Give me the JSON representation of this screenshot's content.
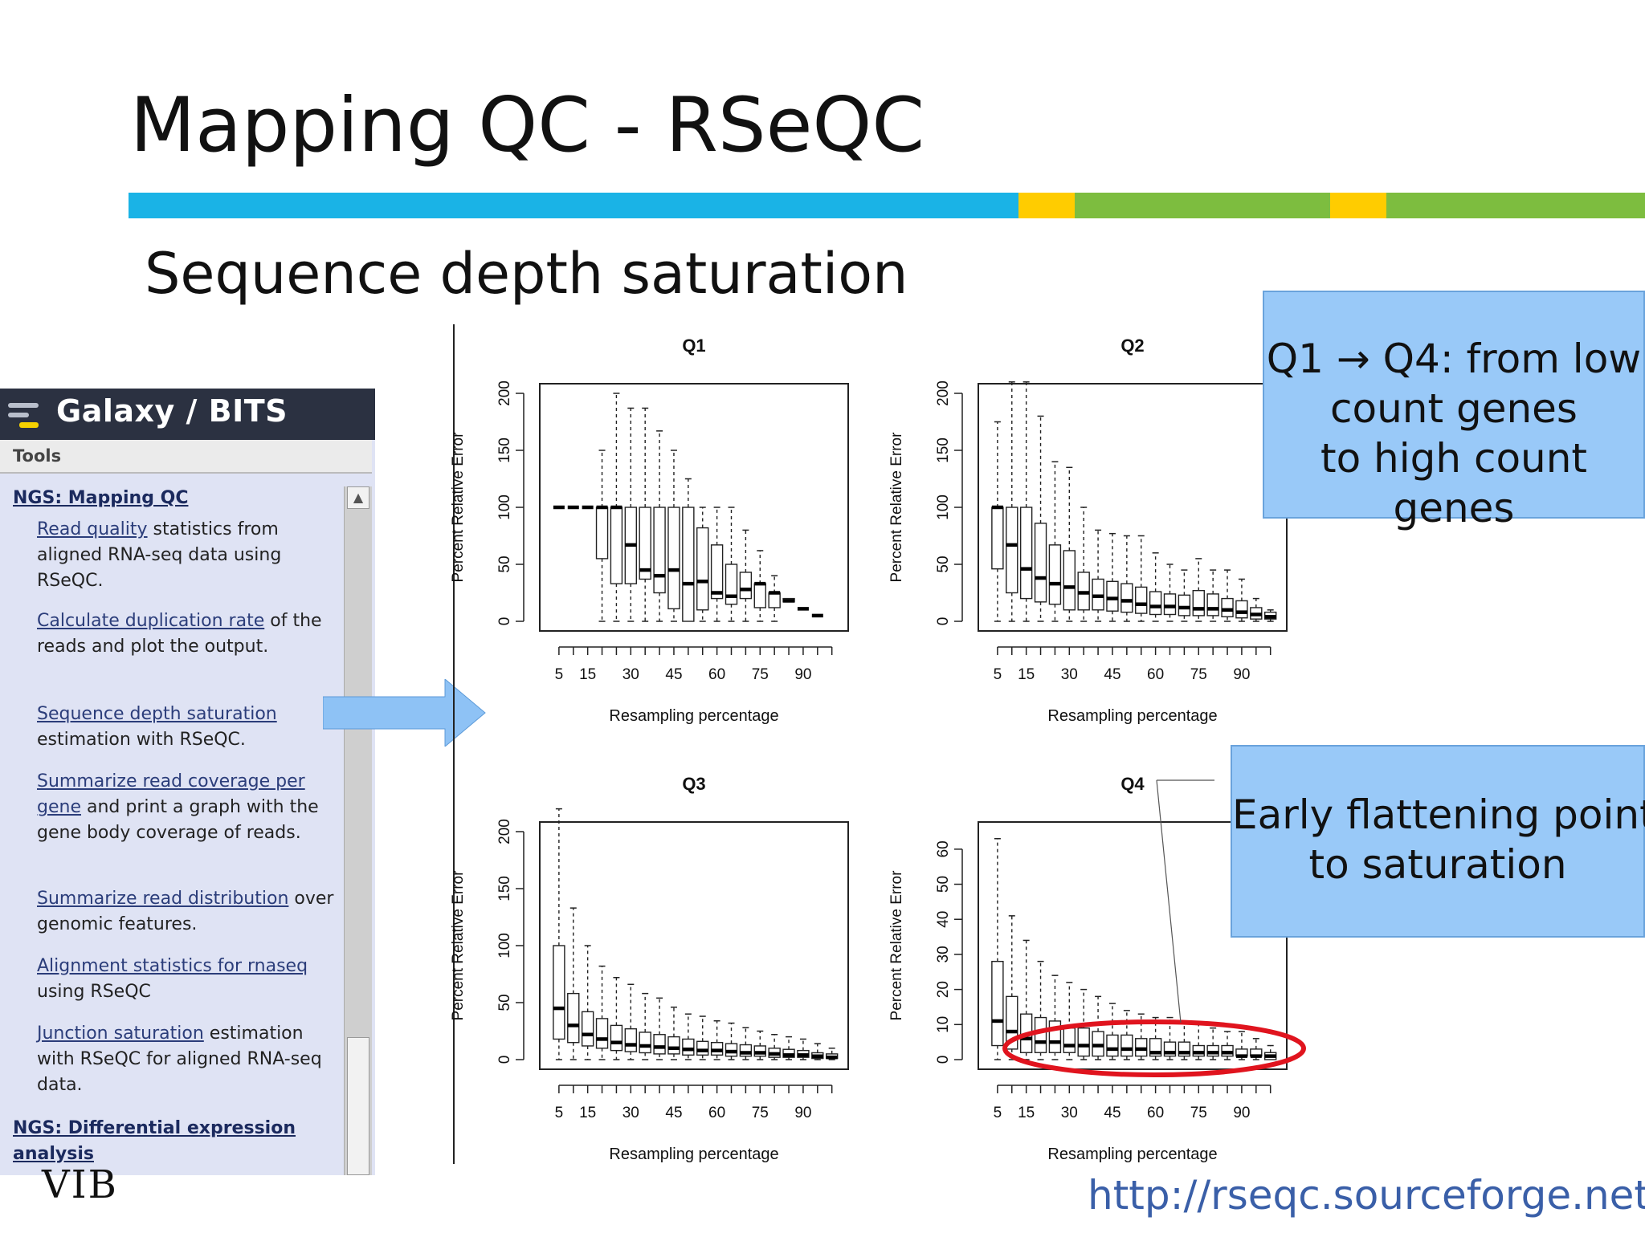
{
  "slide": {
    "title": "Mapping QC - RSeQC",
    "subtitle": "Sequence depth saturation",
    "url": "http://rseqc.sourceforge.net/",
    "logo_text": "VIB",
    "color_bar": [
      "#1ab3e6",
      "#ffcc00",
      "#7dbd3f",
      "#ffcc00",
      "#7dbd3f"
    ]
  },
  "galaxy": {
    "title": "Galaxy / BITS",
    "tools_label": "Tools",
    "section_mapping": "NGS: Mapping QC",
    "items": [
      {
        "link": "Read quality",
        "text": " statistics from aligned RNA-seq data using RSeQC."
      },
      {
        "link": "Calculate duplication rate",
        "text": " of the reads and plot the output."
      },
      {
        "link": "Sequence depth saturation",
        "text": " estimation with RSeQC."
      },
      {
        "link": "Summarize read coverage per gene",
        "text": " and print a graph with the gene body coverage of reads."
      },
      {
        "link": "Summarize read distribution",
        "text": " over genomic features."
      },
      {
        "link": "Alignment statistics for rnaseq",
        "text": " using RSeQC"
      },
      {
        "link": "Junction saturation",
        "text": " estimation with RSeQC for aligned RNA-seq data."
      }
    ],
    "section_diff": "NGS: Differential expression analysis",
    "colors": {
      "header": "#2b3141",
      "panel": "#dfe3f4"
    }
  },
  "callouts": {
    "c1": [
      "Q1 → Q4: from low",
      "count genes",
      "to high count genes"
    ],
    "c2": [
      "Early flattening points",
      "to saturation"
    ],
    "colors": {
      "fill": "#99c9f8",
      "highlight": "#e0141e",
      "arrow": "#8ec2f5"
    }
  },
  "chart_data": [
    {
      "type": "box",
      "title": "Q1",
      "xlabel": "Resampling percentage",
      "ylabel": "Percent Relative Error",
      "ylim": [
        0,
        200
      ],
      "xticks": [
        "5",
        "15",
        "30",
        "45",
        "60",
        "75",
        "90"
      ],
      "yticks": [
        "0",
        "50",
        "100",
        "150",
        "200"
      ],
      "boxes": [
        {
          "x": 5,
          "min": 100,
          "q1": 100,
          "med": 100,
          "q3": 100,
          "max": 100
        },
        {
          "x": 10,
          "min": 100,
          "q1": 100,
          "med": 100,
          "q3": 100,
          "max": 100
        },
        {
          "x": 15,
          "min": 100,
          "q1": 100,
          "med": 100,
          "q3": 100,
          "max": 100
        },
        {
          "x": 20,
          "min": 0,
          "q1": 55,
          "med": 100,
          "q3": 100,
          "max": 150
        },
        {
          "x": 25,
          "min": 0,
          "q1": 33,
          "med": 100,
          "q3": 100,
          "max": 200
        },
        {
          "x": 30,
          "min": 0,
          "q1": 33,
          "med": 67,
          "q3": 100,
          "max": 187
        },
        {
          "x": 35,
          "min": 0,
          "q1": 37,
          "med": 45,
          "q3": 100,
          "max": 187
        },
        {
          "x": 40,
          "min": 0,
          "q1": 25,
          "med": 40,
          "q3": 100,
          "max": 167
        },
        {
          "x": 45,
          "min": 0,
          "q1": 11,
          "med": 45,
          "q3": 100,
          "max": 150
        },
        {
          "x": 50,
          "min": 0,
          "q1": 0,
          "med": 33,
          "q3": 100,
          "max": 125
        },
        {
          "x": 55,
          "min": 0,
          "q1": 10,
          "med": 35,
          "q3": 82,
          "max": 100
        },
        {
          "x": 60,
          "min": 0,
          "q1": 20,
          "med": 25,
          "q3": 67,
          "max": 100
        },
        {
          "x": 65,
          "min": 0,
          "q1": 15,
          "med": 22,
          "q3": 50,
          "max": 100
        },
        {
          "x": 70,
          "min": 0,
          "q1": 20,
          "med": 28,
          "q3": 43,
          "max": 80
        },
        {
          "x": 75,
          "min": 0,
          "q1": 12,
          "med": 33,
          "q3": 33,
          "max": 62
        },
        {
          "x": 80,
          "min": 0,
          "q1": 12,
          "med": 25,
          "q3": 25,
          "max": 40
        },
        {
          "x": 85,
          "min": 17,
          "q1": 17,
          "med": 18,
          "q3": 20,
          "max": 20
        },
        {
          "x": 90,
          "min": 11,
          "q1": 11,
          "med": 11,
          "q3": 11,
          "max": 11
        },
        {
          "x": 95,
          "min": 5,
          "q1": 5,
          "med": 5,
          "q3": 5,
          "max": 5
        }
      ]
    },
    {
      "type": "box",
      "title": "Q2",
      "xlabel": "Resampling percentage",
      "ylabel": "Percent Relative Error",
      "ylim": [
        0,
        200
      ],
      "xticks": [
        "5",
        "15",
        "30",
        "45",
        "60",
        "75",
        "90"
      ],
      "yticks": [
        "0",
        "50",
        "100",
        "150",
        "200"
      ],
      "boxes": [
        {
          "x": 5,
          "min": 0,
          "q1": 46,
          "med": 100,
          "q3": 100,
          "max": 175
        },
        {
          "x": 10,
          "min": 0,
          "q1": 25,
          "med": 67,
          "q3": 100,
          "max": 210
        },
        {
          "x": 15,
          "min": 0,
          "q1": 20,
          "med": 46,
          "q3": 100,
          "max": 210
        },
        {
          "x": 20,
          "min": 0,
          "q1": 17,
          "med": 38,
          "q3": 86,
          "max": 180
        },
        {
          "x": 25,
          "min": 0,
          "q1": 15,
          "med": 33,
          "q3": 67,
          "max": 140
        },
        {
          "x": 30,
          "min": 0,
          "q1": 10,
          "med": 30,
          "q3": 62,
          "max": 135
        },
        {
          "x": 35,
          "min": 0,
          "q1": 10,
          "med": 25,
          "q3": 43,
          "max": 100
        },
        {
          "x": 40,
          "min": 0,
          "q1": 10,
          "med": 22,
          "q3": 37,
          "max": 80
        },
        {
          "x": 45,
          "min": 0,
          "q1": 9,
          "med": 20,
          "q3": 35,
          "max": 77
        },
        {
          "x": 50,
          "min": 0,
          "q1": 8,
          "med": 18,
          "q3": 33,
          "max": 75
        },
        {
          "x": 55,
          "min": 0,
          "q1": 7,
          "med": 15,
          "q3": 30,
          "max": 75
        },
        {
          "x": 60,
          "min": 0,
          "q1": 6,
          "med": 13,
          "q3": 26,
          "max": 60
        },
        {
          "x": 65,
          "min": 0,
          "q1": 6,
          "med": 13,
          "q3": 24,
          "max": 50
        },
        {
          "x": 70,
          "min": 0,
          "q1": 5,
          "med": 12,
          "q3": 23,
          "max": 45
        },
        {
          "x": 75,
          "min": 0,
          "q1": 5,
          "med": 11,
          "q3": 27,
          "max": 55
        },
        {
          "x": 80,
          "min": 0,
          "q1": 5,
          "med": 11,
          "q3": 24,
          "max": 45
        },
        {
          "x": 85,
          "min": 0,
          "q1": 4,
          "med": 10,
          "q3": 20,
          "max": 45
        },
        {
          "x": 90,
          "min": 0,
          "q1": 3,
          "med": 8,
          "q3": 18,
          "max": 37
        },
        {
          "x": 95,
          "min": 0,
          "q1": 2,
          "med": 6,
          "q3": 12,
          "max": 20
        },
        {
          "x": 100,
          "min": 0,
          "q1": 2,
          "med": 4,
          "q3": 8,
          "max": 10
        }
      ]
    },
    {
      "type": "box",
      "title": "Q3",
      "xlabel": "Resampling percentage",
      "ylabel": "Percent Relative Error",
      "ylim": [
        0,
        200
      ],
      "xticks": [
        "5",
        "15",
        "30",
        "45",
        "60",
        "75",
        "90"
      ],
      "yticks": [
        "0",
        "50",
        "100",
        "150",
        "200"
      ],
      "boxes": [
        {
          "x": 5,
          "min": 0,
          "q1": 18,
          "med": 45,
          "q3": 100,
          "max": 220
        },
        {
          "x": 10,
          "min": 0,
          "q1": 15,
          "med": 30,
          "q3": 58,
          "max": 133
        },
        {
          "x": 15,
          "min": 0,
          "q1": 12,
          "med": 22,
          "q3": 42,
          "max": 100
        },
        {
          "x": 20,
          "min": 0,
          "q1": 10,
          "med": 18,
          "q3": 36,
          "max": 82
        },
        {
          "x": 25,
          "min": 0,
          "q1": 8,
          "med": 15,
          "q3": 30,
          "max": 72
        },
        {
          "x": 30,
          "min": 0,
          "q1": 7,
          "med": 13,
          "q3": 27,
          "max": 66
        },
        {
          "x": 35,
          "min": 0,
          "q1": 6,
          "med": 12,
          "q3": 24,
          "max": 58
        },
        {
          "x": 40,
          "min": 0,
          "q1": 5,
          "med": 11,
          "q3": 22,
          "max": 54
        },
        {
          "x": 45,
          "min": 0,
          "q1": 5,
          "med": 10,
          "q3": 20,
          "max": 46
        },
        {
          "x": 50,
          "min": 0,
          "q1": 4,
          "med": 9,
          "q3": 18,
          "max": 40
        },
        {
          "x": 55,
          "min": 0,
          "q1": 4,
          "med": 8,
          "q3": 16,
          "max": 38
        },
        {
          "x": 60,
          "min": 0,
          "q1": 4,
          "med": 8,
          "q3": 15,
          "max": 34
        },
        {
          "x": 65,
          "min": 0,
          "q1": 3,
          "med": 7,
          "q3": 14,
          "max": 32
        },
        {
          "x": 70,
          "min": 0,
          "q1": 3,
          "med": 6,
          "q3": 13,
          "max": 28
        },
        {
          "x": 75,
          "min": 0,
          "q1": 3,
          "med": 6,
          "q3": 12,
          "max": 25
        },
        {
          "x": 80,
          "min": 0,
          "q1": 2,
          "med": 5,
          "q3": 10,
          "max": 22
        },
        {
          "x": 85,
          "min": 0,
          "q1": 2,
          "med": 4,
          "q3": 9,
          "max": 20
        },
        {
          "x": 90,
          "min": 0,
          "q1": 2,
          "med": 4,
          "q3": 8,
          "max": 18
        },
        {
          "x": 95,
          "min": 0,
          "q1": 1,
          "med": 3,
          "q3": 6,
          "max": 14
        },
        {
          "x": 100,
          "min": 0,
          "q1": 1,
          "med": 2,
          "q3": 5,
          "max": 10
        }
      ]
    },
    {
      "type": "box",
      "title": "Q4",
      "xlabel": "Resampling percentage",
      "ylabel": "Percent Relative Error",
      "ylim": [
        0,
        65
      ],
      "xticks": [
        "5",
        "15",
        "30",
        "45",
        "60",
        "75",
        "90"
      ],
      "yticks": [
        "0",
        "10",
        "20",
        "30",
        "40",
        "50",
        "60"
      ],
      "boxes": [
        {
          "x": 5,
          "min": 0,
          "q1": 4,
          "med": 11,
          "q3": 28,
          "max": 63
        },
        {
          "x": 10,
          "min": 0,
          "q1": 3,
          "med": 8,
          "q3": 18,
          "max": 41
        },
        {
          "x": 15,
          "min": 0,
          "q1": 2,
          "med": 6,
          "q3": 13,
          "max": 34
        },
        {
          "x": 20,
          "min": 0,
          "q1": 2,
          "med": 5,
          "q3": 12,
          "max": 28
        },
        {
          "x": 25,
          "min": 0,
          "q1": 2,
          "med": 5,
          "q3": 11,
          "max": 24
        },
        {
          "x": 30,
          "min": 0,
          "q1": 2,
          "med": 4,
          "q3": 9,
          "max": 22
        },
        {
          "x": 35,
          "min": 0,
          "q1": 1,
          "med": 4,
          "q3": 9,
          "max": 20
        },
        {
          "x": 40,
          "min": 0,
          "q1": 1,
          "med": 4,
          "q3": 8,
          "max": 18
        },
        {
          "x": 45,
          "min": 0,
          "q1": 1,
          "med": 3,
          "q3": 7,
          "max": 16
        },
        {
          "x": 50,
          "min": 0,
          "q1": 1,
          "med": 3,
          "q3": 7,
          "max": 14
        },
        {
          "x": 55,
          "min": 0,
          "q1": 1,
          "med": 3,
          "q3": 6,
          "max": 13
        },
        {
          "x": 60,
          "min": 0,
          "q1": 1,
          "med": 2,
          "q3": 6,
          "max": 12
        },
        {
          "x": 65,
          "min": 0,
          "q1": 1,
          "med": 2,
          "q3": 5,
          "max": 12
        },
        {
          "x": 70,
          "min": 0,
          "q1": 1,
          "med": 2,
          "q3": 5,
          "max": 11
        },
        {
          "x": 75,
          "min": 0,
          "q1": 1,
          "med": 2,
          "q3": 4,
          "max": 10
        },
        {
          "x": 80,
          "min": 0,
          "q1": 1,
          "med": 2,
          "q3": 4,
          "max": 9
        },
        {
          "x": 85,
          "min": 0,
          "q1": 1,
          "med": 2,
          "q3": 4,
          "max": 8
        },
        {
          "x": 90,
          "min": 0,
          "q1": 1,
          "med": 1,
          "q3": 3,
          "max": 8
        },
        {
          "x": 95,
          "min": 0,
          "q1": 1,
          "med": 1,
          "q3": 3,
          "max": 6
        },
        {
          "x": 100,
          "min": 0,
          "q1": 0,
          "med": 1,
          "q3": 2,
          "max": 4
        }
      ]
    }
  ]
}
